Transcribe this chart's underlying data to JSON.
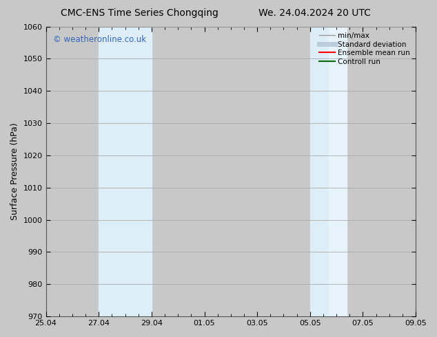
{
  "title": "CMC-ENS Time Series Chongqing",
  "title2": "We. 24.04.2024 20 UTC",
  "ylabel": "Surface Pressure (hPa)",
  "ylim": [
    970,
    1060
  ],
  "yticks": [
    970,
    980,
    990,
    1000,
    1010,
    1020,
    1030,
    1040,
    1050,
    1060
  ],
  "xtick_labels": [
    "25.04",
    "27.04",
    "29.04",
    "01.05",
    "03.05",
    "05.05",
    "07.05",
    "09.05"
  ],
  "xtick_positions": [
    0,
    2,
    4,
    6,
    8,
    10,
    12,
    14
  ],
  "shaded_bands": [
    {
      "x_start": 2,
      "x_end": 3
    },
    {
      "x_start": 3,
      "x_end": 4
    },
    {
      "x_start": 10,
      "x_end": 10.6
    },
    {
      "x_start": 10.6,
      "x_end": 11.3
    }
  ],
  "shade_color": "#ddeef8",
  "shade_color2": "#e8f4fc",
  "watermark": "© weatheronline.co.uk",
  "watermark_color": "#3366bb",
  "legend_items": [
    {
      "label": "min/max",
      "color": "#999999",
      "lw": 1.0,
      "style": "solid"
    },
    {
      "label": "Standard deviation",
      "color": "#bbccdd",
      "lw": 5,
      "style": "solid"
    },
    {
      "label": "Ensemble mean run",
      "color": "#ff0000",
      "lw": 1.5,
      "style": "solid"
    },
    {
      "label": "Controll run",
      "color": "#006600",
      "lw": 1.5,
      "style": "solid"
    }
  ],
  "background_color": "#c8c8c8",
  "plot_bg_color": "#c8c8c8",
  "grid_color": "#aaaaaa",
  "title_fontsize": 10,
  "tick_fontsize": 8,
  "ylabel_fontsize": 9
}
